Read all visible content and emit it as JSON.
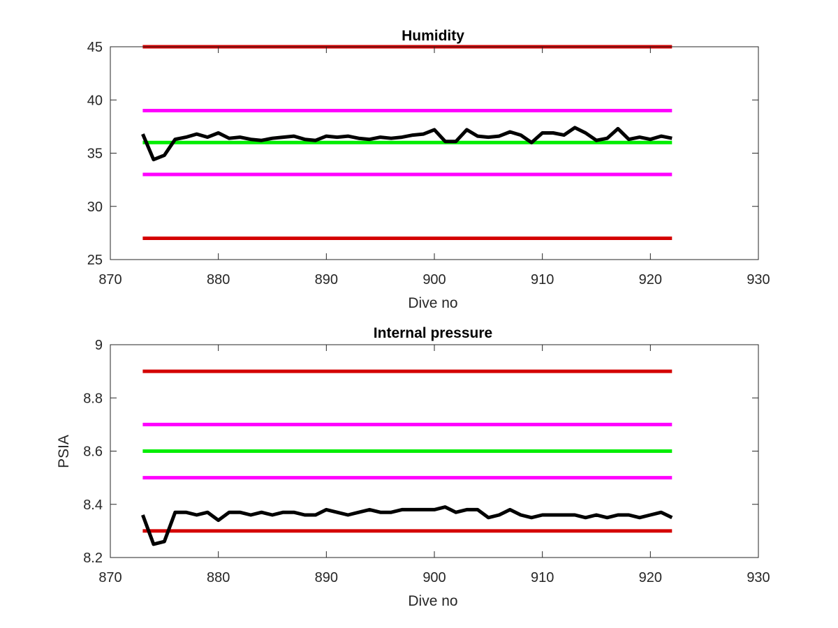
{
  "colors": {
    "red": "#d40000",
    "magenta": "#ff00ff",
    "green": "#00ee00",
    "data": "#000000"
  },
  "chart_data": [
    {
      "type": "line",
      "title": "Humidity",
      "xlabel": "Dive no",
      "ylabel": "",
      "xlim": [
        870,
        930
      ],
      "ylim": [
        25,
        45
      ],
      "xticks": [
        "870",
        "880",
        "890",
        "900",
        "910",
        "920",
        "930"
      ],
      "yticks": [
        "25",
        "30",
        "35",
        "40",
        "45"
      ],
      "grid": false,
      "legend": "none",
      "series": [
        {
          "color": "red",
          "x": [
            873,
            922
          ],
          "y": [
            45,
            45
          ]
        },
        {
          "color": "magenta",
          "x": [
            873,
            922
          ],
          "y": [
            39,
            39
          ]
        },
        {
          "color": "green",
          "x": [
            873,
            922
          ],
          "y": [
            36,
            36
          ]
        },
        {
          "color": "magenta",
          "x": [
            873,
            922
          ],
          "y": [
            33,
            33
          ]
        },
        {
          "color": "red",
          "x": [
            873,
            922
          ],
          "y": [
            27,
            27
          ]
        },
        {
          "color": "data",
          "x": [
            873,
            874,
            875,
            876,
            877,
            878,
            879,
            880,
            881,
            882,
            883,
            884,
            885,
            886,
            887,
            888,
            889,
            890,
            891,
            892,
            893,
            894,
            895,
            896,
            897,
            898,
            899,
            900,
            901,
            902,
            903,
            904,
            905,
            906,
            907,
            908,
            909,
            910,
            911,
            912,
            913,
            914,
            915,
            916,
            917,
            918,
            919,
            920,
            921,
            922
          ],
          "y": [
            36.8,
            34.4,
            34.8,
            36.3,
            36.5,
            36.8,
            36.5,
            36.9,
            36.4,
            36.5,
            36.3,
            36.2,
            36.4,
            36.5,
            36.6,
            36.3,
            36.2,
            36.6,
            36.5,
            36.6,
            36.4,
            36.3,
            36.5,
            36.4,
            36.5,
            36.7,
            36.8,
            37.2,
            36.1,
            36.1,
            37.2,
            36.6,
            36.5,
            36.6,
            37.0,
            36.7,
            36.0,
            36.9,
            36.9,
            36.7,
            37.4,
            36.9,
            36.2,
            36.4,
            37.3,
            36.3,
            36.5,
            36.3,
            36.6,
            36.4
          ]
        }
      ]
    },
    {
      "type": "line",
      "title": "Internal pressure",
      "xlabel": "Dive no",
      "ylabel": "PSIA",
      "xlim": [
        870,
        930
      ],
      "ylim": [
        8.2,
        9.0
      ],
      "xticks": [
        "870",
        "880",
        "890",
        "900",
        "910",
        "920",
        "930"
      ],
      "yticks": [
        "8.2",
        "8.4",
        "8.6",
        "8.8",
        "9"
      ],
      "grid": false,
      "legend": "none",
      "series": [
        {
          "color": "red",
          "x": [
            873,
            922
          ],
          "y": [
            8.9,
            8.9
          ]
        },
        {
          "color": "magenta",
          "x": [
            873,
            922
          ],
          "y": [
            8.7,
            8.7
          ]
        },
        {
          "color": "green",
          "x": [
            873,
            922
          ],
          "y": [
            8.6,
            8.6
          ]
        },
        {
          "color": "magenta",
          "x": [
            873,
            922
          ],
          "y": [
            8.5,
            8.5
          ]
        },
        {
          "color": "red",
          "x": [
            873,
            922
          ],
          "y": [
            8.3,
            8.3
          ]
        },
        {
          "color": "data",
          "x": [
            873,
            874,
            875,
            876,
            877,
            878,
            879,
            880,
            881,
            882,
            883,
            884,
            885,
            886,
            887,
            888,
            889,
            890,
            891,
            892,
            893,
            894,
            895,
            896,
            897,
            898,
            899,
            900,
            901,
            902,
            903,
            904,
            905,
            906,
            907,
            908,
            909,
            910,
            911,
            912,
            913,
            914,
            915,
            916,
            917,
            918,
            919,
            920,
            921,
            922
          ],
          "y": [
            8.36,
            8.25,
            8.26,
            8.37,
            8.37,
            8.36,
            8.37,
            8.34,
            8.37,
            8.37,
            8.36,
            8.37,
            8.36,
            8.37,
            8.37,
            8.36,
            8.36,
            8.38,
            8.37,
            8.36,
            8.37,
            8.38,
            8.37,
            8.37,
            8.38,
            8.38,
            8.38,
            8.38,
            8.39,
            8.37,
            8.38,
            8.38,
            8.35,
            8.36,
            8.38,
            8.36,
            8.35,
            8.36,
            8.36,
            8.36,
            8.36,
            8.35,
            8.36,
            8.35,
            8.36,
            8.36,
            8.35,
            8.36,
            8.37,
            8.35
          ]
        }
      ]
    }
  ]
}
